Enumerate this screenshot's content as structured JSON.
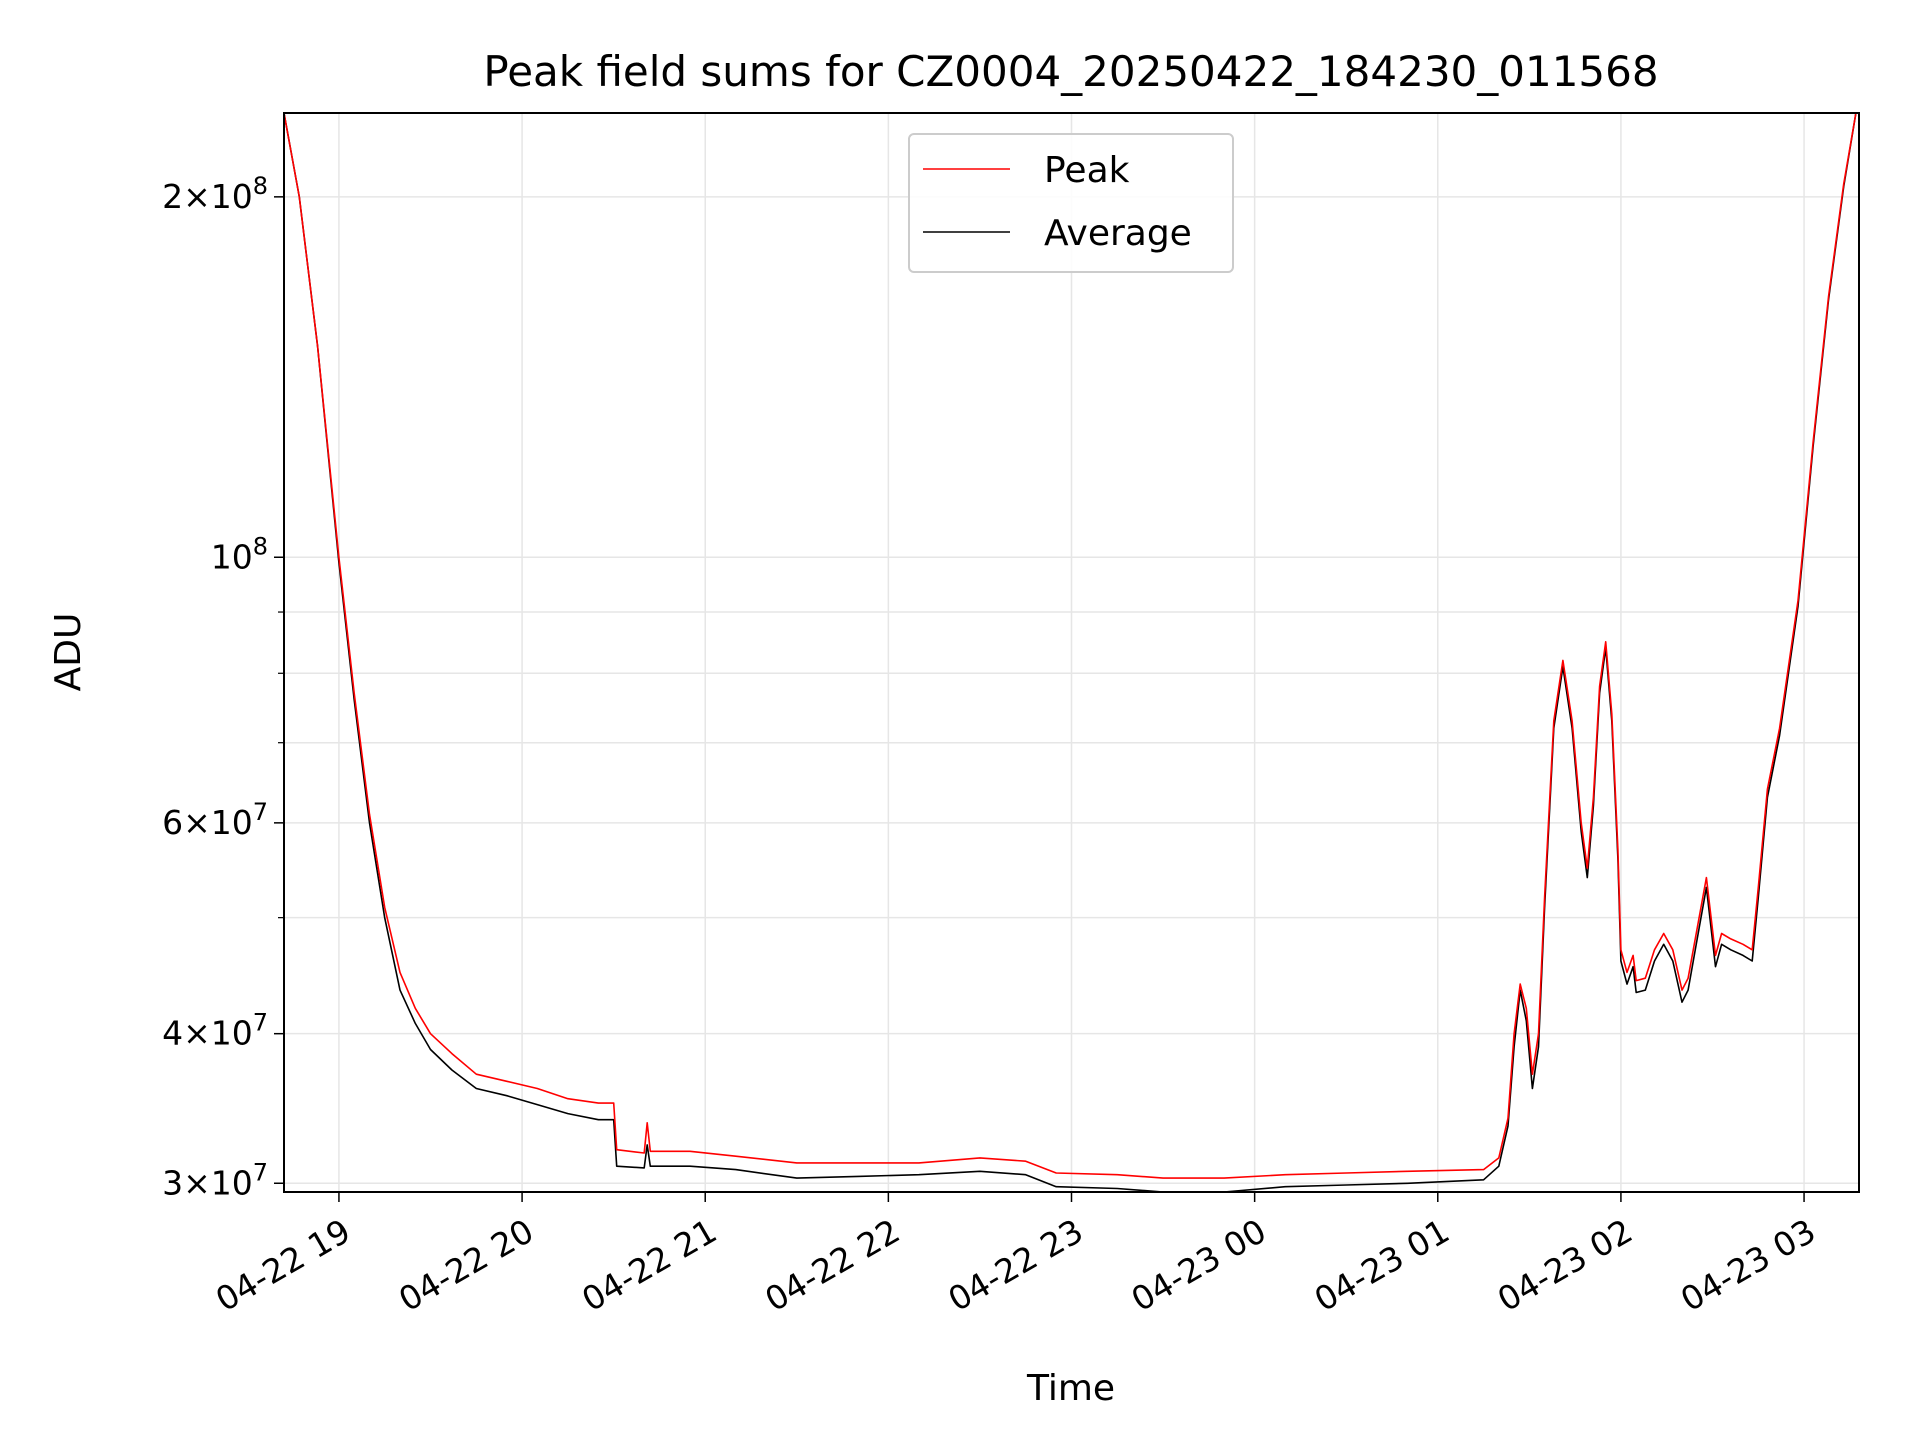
{
  "chart_data": {
    "type": "line",
    "title": "Peak field sums for CZ0004_20250422_184230_011568",
    "xlabel": "Time",
    "ylabel": "ADU",
    "yscale": "log",
    "ylim": [
      29500000,
      235000000
    ],
    "xlim": [
      "2025-04-22 18:42",
      "2025-04-23 03:18"
    ],
    "grid": true,
    "legend_position": "upper-center",
    "x_ticks": [
      {
        "t": "2025-04-22 19:00",
        "label": "04-22 19"
      },
      {
        "t": "2025-04-22 20:00",
        "label": "04-22 20"
      },
      {
        "t": "2025-04-22 21:00",
        "label": "04-22 21"
      },
      {
        "t": "2025-04-22 22:00",
        "label": "04-22 22"
      },
      {
        "t": "2025-04-22 23:00",
        "label": "04-22 23"
      },
      {
        "t": "2025-04-23 00:00",
        "label": "04-23 00"
      },
      {
        "t": "2025-04-23 01:00",
        "label": "04-23 01"
      },
      {
        "t": "2025-04-23 02:00",
        "label": "04-23 02"
      },
      {
        "t": "2025-04-23 03:00",
        "label": "04-23 03"
      }
    ],
    "y_ticks": [
      {
        "value": 30000000,
        "base": "3×10",
        "exp": "7"
      },
      {
        "value": 40000000,
        "base": "4×10",
        "exp": "7"
      },
      {
        "value": 60000000,
        "base": "6×10",
        "exp": "7"
      },
      {
        "value": 100000000,
        "base": "10",
        "exp": "8"
      },
      {
        "value": 200000000,
        "base": "2×10",
        "exp": "8"
      }
    ],
    "y_minor_ticks": [
      50000000,
      70000000,
      80000000,
      90000000
    ],
    "series": [
      {
        "name": "Peak",
        "color": "#ff0000",
        "points": [
          [
            "2025-04-22 18:42",
            235000000
          ],
          [
            "2025-04-22 18:47",
            200000000
          ],
          [
            "2025-04-22 18:53",
            150000000
          ],
          [
            "2025-04-22 19:00",
            100000000
          ],
          [
            "2025-04-22 19:05",
            77000000
          ],
          [
            "2025-04-22 19:10",
            61000000
          ],
          [
            "2025-04-22 19:15",
            51000000
          ],
          [
            "2025-04-22 19:20",
            45000000
          ],
          [
            "2025-04-22 19:25",
            42000000
          ],
          [
            "2025-04-22 19:30",
            40000000
          ],
          [
            "2025-04-22 19:37",
            38500000
          ],
          [
            "2025-04-22 19:45",
            37000000
          ],
          [
            "2025-04-22 19:55",
            36500000
          ],
          [
            "2025-04-22 20:05",
            36000000
          ],
          [
            "2025-04-22 20:15",
            35300000
          ],
          [
            "2025-04-22 20:25",
            35000000
          ],
          [
            "2025-04-22 20:30",
            35000000
          ],
          [
            "2025-04-22 20:31",
            32000000
          ],
          [
            "2025-04-22 20:40",
            31800000
          ],
          [
            "2025-04-22 20:41",
            33700000
          ],
          [
            "2025-04-22 20:42",
            31900000
          ],
          [
            "2025-04-22 20:55",
            31900000
          ],
          [
            "2025-04-22 21:10",
            31600000
          ],
          [
            "2025-04-22 21:30",
            31200000
          ],
          [
            "2025-04-22 21:50",
            31200000
          ],
          [
            "2025-04-22 22:10",
            31200000
          ],
          [
            "2025-04-22 22:30",
            31500000
          ],
          [
            "2025-04-22 22:45",
            31300000
          ],
          [
            "2025-04-22 22:55",
            30600000
          ],
          [
            "2025-04-22 23:15",
            30500000
          ],
          [
            "2025-04-22 23:30",
            30300000
          ],
          [
            "2025-04-22 23:50",
            30300000
          ],
          [
            "2025-04-23 00:10",
            30500000
          ],
          [
            "2025-04-23 00:30",
            30600000
          ],
          [
            "2025-04-23 00:50",
            30700000
          ],
          [
            "2025-04-23 01:15",
            30800000
          ],
          [
            "2025-04-23 01:20",
            31500000
          ],
          [
            "2025-04-23 01:23",
            34000000
          ],
          [
            "2025-04-23 01:25",
            40000000
          ],
          [
            "2025-04-23 01:27",
            44000000
          ],
          [
            "2025-04-23 01:29",
            42000000
          ],
          [
            "2025-04-23 01:31",
            37000000
          ],
          [
            "2025-04-23 01:33",
            40000000
          ],
          [
            "2025-04-23 01:35",
            52000000
          ],
          [
            "2025-04-23 01:38",
            73000000
          ],
          [
            "2025-04-23 01:41",
            82000000
          ],
          [
            "2025-04-23 01:44",
            73000000
          ],
          [
            "2025-04-23 01:47",
            60000000
          ],
          [
            "2025-04-23 01:49",
            55000000
          ],
          [
            "2025-04-23 01:51",
            63000000
          ],
          [
            "2025-04-23 01:53",
            78000000
          ],
          [
            "2025-04-23 01:55",
            85000000
          ],
          [
            "2025-04-23 01:57",
            74000000
          ],
          [
            "2025-04-23 01:59",
            57000000
          ],
          [
            "2025-04-23 02:00",
            47000000
          ],
          [
            "2025-04-23 02:02",
            45000000
          ],
          [
            "2025-04-23 02:04",
            46500000
          ],
          [
            "2025-04-23 02:05",
            44300000
          ],
          [
            "2025-04-23 02:08",
            44500000
          ],
          [
            "2025-04-23 02:11",
            47000000
          ],
          [
            "2025-04-23 02:14",
            48500000
          ],
          [
            "2025-04-23 02:17",
            47000000
          ],
          [
            "2025-04-23 02:20",
            43500000
          ],
          [
            "2025-04-23 02:22",
            44500000
          ],
          [
            "2025-04-23 02:25",
            49000000
          ],
          [
            "2025-04-23 02:28",
            54000000
          ],
          [
            "2025-04-23 02:31",
            46500000
          ],
          [
            "2025-04-23 02:33",
            48500000
          ],
          [
            "2025-04-23 02:36",
            48000000
          ],
          [
            "2025-04-23 02:40",
            47500000
          ],
          [
            "2025-04-23 02:43",
            47000000
          ],
          [
            "2025-04-23 02:45",
            53000000
          ],
          [
            "2025-04-23 02:48",
            64000000
          ],
          [
            "2025-04-23 02:52",
            72000000
          ],
          [
            "2025-04-23 02:58",
            92000000
          ],
          [
            "2025-04-23 03:03",
            125000000
          ],
          [
            "2025-04-23 03:08",
            165000000
          ],
          [
            "2025-04-23 03:13",
            205000000
          ],
          [
            "2025-04-23 03:17",
            235000000
          ]
        ]
      },
      {
        "name": "Average",
        "color": "#000000",
        "points": [
          [
            "2025-04-22 18:42",
            235000000
          ],
          [
            "2025-04-22 18:47",
            200000000
          ],
          [
            "2025-04-22 18:53",
            150000000
          ],
          [
            "2025-04-22 19:00",
            99000000
          ],
          [
            "2025-04-22 19:05",
            76000000
          ],
          [
            "2025-04-22 19:10",
            60000000
          ],
          [
            "2025-04-22 19:15",
            50000000
          ],
          [
            "2025-04-22 19:20",
            43500000
          ],
          [
            "2025-04-22 19:25",
            40800000
          ],
          [
            "2025-04-22 19:30",
            38800000
          ],
          [
            "2025-04-22 19:37",
            37300000
          ],
          [
            "2025-04-22 19:45",
            36000000
          ],
          [
            "2025-04-22 19:55",
            35500000
          ],
          [
            "2025-04-22 20:05",
            34900000
          ],
          [
            "2025-04-22 20:15",
            34300000
          ],
          [
            "2025-04-22 20:25",
            33900000
          ],
          [
            "2025-04-22 20:30",
            33900000
          ],
          [
            "2025-04-22 20:31",
            31000000
          ],
          [
            "2025-04-22 20:40",
            30900000
          ],
          [
            "2025-04-22 20:41",
            32300000
          ],
          [
            "2025-04-22 20:42",
            31000000
          ],
          [
            "2025-04-22 20:55",
            31000000
          ],
          [
            "2025-04-22 21:10",
            30800000
          ],
          [
            "2025-04-22 21:30",
            30300000
          ],
          [
            "2025-04-22 21:50",
            30400000
          ],
          [
            "2025-04-22 22:10",
            30500000
          ],
          [
            "2025-04-22 22:30",
            30700000
          ],
          [
            "2025-04-22 22:45",
            30500000
          ],
          [
            "2025-04-22 22:55",
            29800000
          ],
          [
            "2025-04-22 23:15",
            29700000
          ],
          [
            "2025-04-22 23:30",
            29500000
          ],
          [
            "2025-04-22 23:50",
            29500000
          ],
          [
            "2025-04-23 00:10",
            29800000
          ],
          [
            "2025-04-23 00:30",
            29900000
          ],
          [
            "2025-04-23 00:50",
            30000000
          ],
          [
            "2025-04-23 01:15",
            30200000
          ],
          [
            "2025-04-23 01:20",
            31000000
          ],
          [
            "2025-04-23 01:23",
            33500000
          ],
          [
            "2025-04-23 01:25",
            39000000
          ],
          [
            "2025-04-23 01:27",
            43500000
          ],
          [
            "2025-04-23 01:29",
            41000000
          ],
          [
            "2025-04-23 01:31",
            36000000
          ],
          [
            "2025-04-23 01:33",
            39000000
          ],
          [
            "2025-04-23 01:35",
            51000000
          ],
          [
            "2025-04-23 01:38",
            72000000
          ],
          [
            "2025-04-23 01:41",
            81000000
          ],
          [
            "2025-04-23 01:44",
            72000000
          ],
          [
            "2025-04-23 01:47",
            59000000
          ],
          [
            "2025-04-23 01:49",
            54000000
          ],
          [
            "2025-04-23 01:51",
            62000000
          ],
          [
            "2025-04-23 01:53",
            77000000
          ],
          [
            "2025-04-23 01:55",
            84000000
          ],
          [
            "2025-04-23 01:57",
            73000000
          ],
          [
            "2025-04-23 01:59",
            56000000
          ],
          [
            "2025-04-23 02:00",
            46000000
          ],
          [
            "2025-04-23 02:02",
            44000000
          ],
          [
            "2025-04-23 02:04",
            45500000
          ],
          [
            "2025-04-23 02:05",
            43300000
          ],
          [
            "2025-04-23 02:08",
            43500000
          ],
          [
            "2025-04-23 02:11",
            46000000
          ],
          [
            "2025-04-23 02:14",
            47500000
          ],
          [
            "2025-04-23 02:17",
            46000000
          ],
          [
            "2025-04-23 02:20",
            42500000
          ],
          [
            "2025-04-23 02:22",
            43500000
          ],
          [
            "2025-04-23 02:25",
            48000000
          ],
          [
            "2025-04-23 02:28",
            53000000
          ],
          [
            "2025-04-23 02:31",
            45500000
          ],
          [
            "2025-04-23 02:33",
            47500000
          ],
          [
            "2025-04-23 02:36",
            47000000
          ],
          [
            "2025-04-23 02:40",
            46500000
          ],
          [
            "2025-04-23 02:43",
            46000000
          ],
          [
            "2025-04-23 02:45",
            52000000
          ],
          [
            "2025-04-23 02:48",
            63000000
          ],
          [
            "2025-04-23 02:52",
            71000000
          ],
          [
            "2025-04-23 02:58",
            91000000
          ],
          [
            "2025-04-23 03:03",
            124000000
          ],
          [
            "2025-04-23 03:08",
            164000000
          ],
          [
            "2025-04-23 03:13",
            204000000
          ],
          [
            "2025-04-23 03:17",
            235000000
          ]
        ]
      }
    ]
  }
}
